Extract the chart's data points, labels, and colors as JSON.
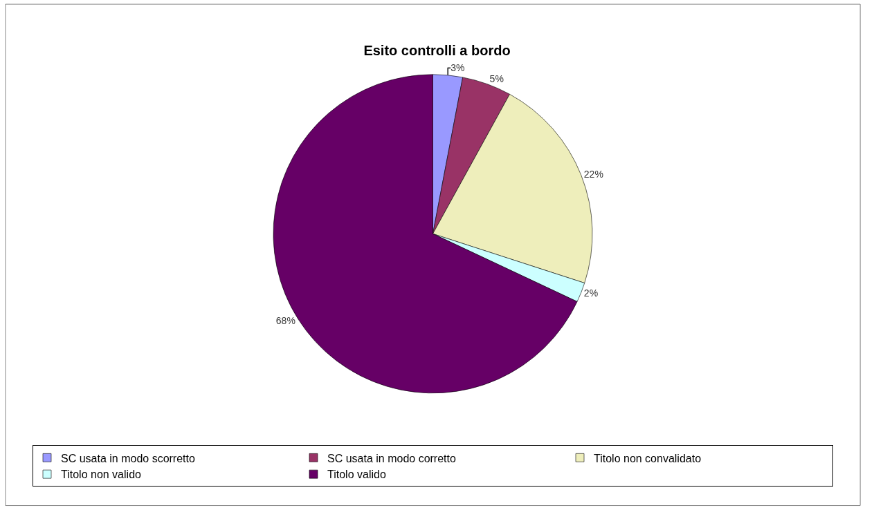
{
  "chart_data": {
    "type": "pie",
    "title": "Esito controlli a bordo",
    "categories": [
      "SC usata in modo scorretto",
      "SC usata in modo corretto",
      "Titolo non convalidato",
      "Titolo non valido",
      "Titolo valido"
    ],
    "values": [
      3,
      5,
      22,
      2,
      68
    ],
    "value_labels": [
      "3%",
      "5%",
      "22%",
      "2%",
      "68%"
    ],
    "colors": [
      "#9999ff",
      "#993366",
      "#eeeebb",
      "#ccffff",
      "#660066"
    ],
    "legend": "bottom"
  }
}
